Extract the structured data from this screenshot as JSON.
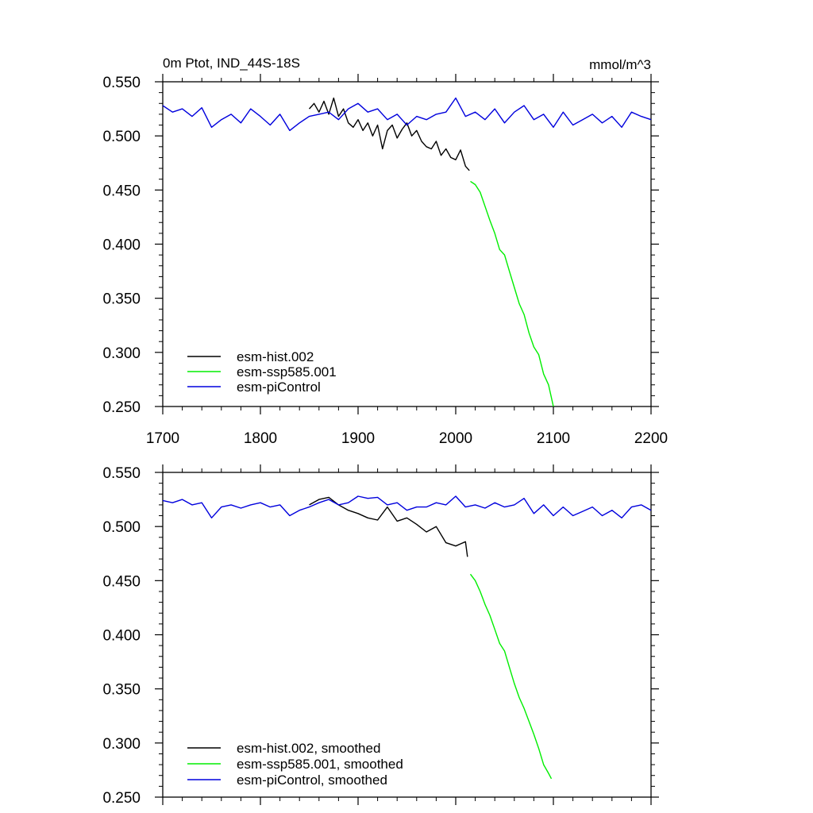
{
  "colors": {
    "hist": "#000000",
    "ssp": "#00ee00",
    "pi": "#0000dd",
    "axis": "#000000"
  },
  "chart_data": [
    {
      "type": "line",
      "title": "0m Ptot, IND_44S-18S",
      "units": "mmol/m^3",
      "xlim": [
        1700,
        2200
      ],
      "ylim": [
        0.25,
        0.55
      ],
      "xticks": [
        1700,
        1800,
        1900,
        2000,
        2100,
        2200
      ],
      "xtick_labels": [
        "1700",
        "1800",
        "1900",
        "2000",
        "2100",
        "2200"
      ],
      "yticks": [
        0.25,
        0.3,
        0.35,
        0.4,
        0.45,
        0.5,
        0.55
      ],
      "ytick_labels": [
        "0.250",
        "0.300",
        "0.350",
        "0.400",
        "0.450",
        "0.500",
        "0.550"
      ],
      "legend_position": "bottom-left",
      "series": [
        {
          "name": "esm-hist.002",
          "color_key": "hist",
          "x": [
            1850,
            1855,
            1860,
            1865,
            1870,
            1875,
            1880,
            1885,
            1890,
            1895,
            1900,
            1905,
            1910,
            1915,
            1920,
            1925,
            1930,
            1935,
            1940,
            1945,
            1950,
            1955,
            1960,
            1965,
            1970,
            1975,
            1980,
            1985,
            1990,
            1995,
            2000,
            2005,
            2010,
            2014
          ],
          "y": [
            0.525,
            0.53,
            0.522,
            0.532,
            0.52,
            0.535,
            0.518,
            0.525,
            0.512,
            0.508,
            0.515,
            0.505,
            0.512,
            0.5,
            0.51,
            0.488,
            0.505,
            0.51,
            0.498,
            0.506,
            0.512,
            0.5,
            0.505,
            0.495,
            0.49,
            0.488,
            0.495,
            0.482,
            0.488,
            0.48,
            0.478,
            0.487,
            0.472,
            0.468
          ]
        },
        {
          "name": "esm-ssp585.001",
          "color_key": "ssp",
          "x": [
            2015,
            2020,
            2025,
            2030,
            2035,
            2040,
            2045,
            2050,
            2055,
            2060,
            2065,
            2070,
            2075,
            2080,
            2085,
            2090,
            2095,
            2100
          ],
          "y": [
            0.458,
            0.455,
            0.448,
            0.435,
            0.422,
            0.41,
            0.395,
            0.39,
            0.375,
            0.36,
            0.345,
            0.335,
            0.318,
            0.305,
            0.298,
            0.28,
            0.27,
            0.25
          ]
        },
        {
          "name": "esm-piControl",
          "color_key": "pi",
          "x": [
            1700,
            1710,
            1720,
            1730,
            1740,
            1750,
            1760,
            1770,
            1780,
            1790,
            1800,
            1810,
            1820,
            1830,
            1840,
            1850,
            1860,
            1870,
            1880,
            1890,
            1900,
            1910,
            1920,
            1930,
            1940,
            1950,
            1960,
            1970,
            1980,
            1990,
            2000,
            2010,
            2020,
            2030,
            2040,
            2050,
            2060,
            2070,
            2080,
            2090,
            2100,
            2110,
            2120,
            2130,
            2140,
            2150,
            2160,
            2170,
            2180,
            2190,
            2200
          ],
          "y": [
            0.528,
            0.522,
            0.525,
            0.518,
            0.526,
            0.508,
            0.515,
            0.52,
            0.512,
            0.525,
            0.518,
            0.51,
            0.52,
            0.505,
            0.512,
            0.518,
            0.52,
            0.522,
            0.515,
            0.525,
            0.53,
            0.522,
            0.525,
            0.515,
            0.52,
            0.51,
            0.518,
            0.515,
            0.52,
            0.522,
            0.535,
            0.518,
            0.522,
            0.515,
            0.525,
            0.512,
            0.522,
            0.528,
            0.515,
            0.52,
            0.508,
            0.522,
            0.51,
            0.515,
            0.52,
            0.512,
            0.518,
            0.508,
            0.522,
            0.518,
            0.515
          ]
        }
      ]
    },
    {
      "type": "line",
      "title": "",
      "units": "",
      "xlim": [
        1700,
        2200
      ],
      "ylim": [
        0.25,
        0.55
      ],
      "xticks": [
        1700,
        1800,
        1900,
        2000,
        2100,
        2200
      ],
      "xtick_labels": [],
      "yticks": [
        0.25,
        0.3,
        0.35,
        0.4,
        0.45,
        0.5,
        0.55
      ],
      "ytick_labels": [
        "0.250",
        "0.300",
        "0.350",
        "0.400",
        "0.450",
        "0.500",
        "0.550"
      ],
      "legend_position": "bottom-left",
      "series": [
        {
          "name": "esm-hist.002, smoothed",
          "color_key": "hist",
          "x": [
            1850,
            1860,
            1870,
            1880,
            1890,
            1900,
            1910,
            1920,
            1930,
            1940,
            1950,
            1960,
            1970,
            1980,
            1990,
            2000,
            2005,
            2010,
            2012
          ],
          "y": [
            0.52,
            0.525,
            0.527,
            0.52,
            0.515,
            0.512,
            0.508,
            0.506,
            0.518,
            0.505,
            0.508,
            0.502,
            0.495,
            0.5,
            0.485,
            0.482,
            0.484,
            0.486,
            0.472
          ]
        },
        {
          "name": "esm-ssp585.001, smoothed",
          "color_key": "ssp",
          "x": [
            2015,
            2020,
            2025,
            2030,
            2035,
            2040,
            2045,
            2050,
            2055,
            2060,
            2065,
            2070,
            2075,
            2080,
            2085,
            2090,
            2095,
            2098
          ],
          "y": [
            0.456,
            0.45,
            0.44,
            0.428,
            0.418,
            0.405,
            0.392,
            0.385,
            0.37,
            0.355,
            0.342,
            0.332,
            0.32,
            0.308,
            0.295,
            0.28,
            0.272,
            0.267
          ]
        },
        {
          "name": "esm-piControl, smoothed",
          "color_key": "pi",
          "x": [
            1700,
            1710,
            1720,
            1730,
            1740,
            1750,
            1760,
            1770,
            1780,
            1790,
            1800,
            1810,
            1820,
            1830,
            1840,
            1850,
            1860,
            1870,
            1880,
            1890,
            1900,
            1910,
            1920,
            1930,
            1940,
            1950,
            1960,
            1970,
            1980,
            1990,
            2000,
            2010,
            2020,
            2030,
            2040,
            2050,
            2060,
            2070,
            2080,
            2090,
            2100,
            2110,
            2120,
            2130,
            2140,
            2150,
            2160,
            2170,
            2180,
            2190,
            2200
          ],
          "y": [
            0.524,
            0.522,
            0.525,
            0.52,
            0.522,
            0.508,
            0.518,
            0.52,
            0.517,
            0.52,
            0.522,
            0.518,
            0.52,
            0.51,
            0.515,
            0.518,
            0.522,
            0.525,
            0.52,
            0.522,
            0.528,
            0.526,
            0.527,
            0.52,
            0.522,
            0.515,
            0.518,
            0.518,
            0.522,
            0.52,
            0.528,
            0.518,
            0.52,
            0.517,
            0.522,
            0.518,
            0.52,
            0.526,
            0.512,
            0.52,
            0.51,
            0.518,
            0.51,
            0.514,
            0.518,
            0.51,
            0.515,
            0.508,
            0.518,
            0.52,
            0.515
          ]
        }
      ]
    }
  ]
}
